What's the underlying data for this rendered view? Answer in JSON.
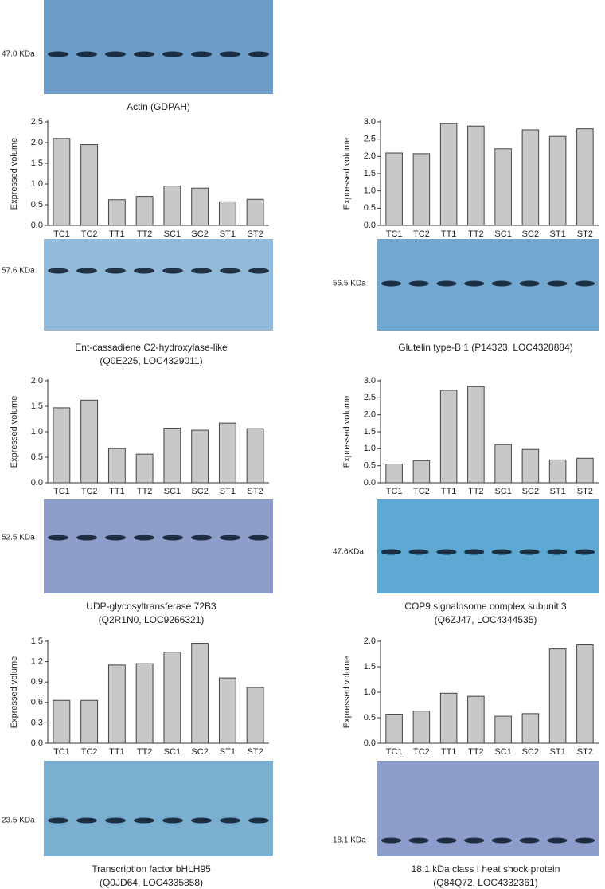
{
  "actin_blot": {
    "label": "47.0 KDa",
    "caption": "Actin (GDPAH)",
    "blot_color": "#6b9dc8"
  },
  "chart_data": [
    {
      "type": "bar",
      "y_label": "Expressed volume",
      "color": "#c8c8c8",
      "categories": [
        "TC1",
        "TC2",
        "TT1",
        "TT2",
        "SC1",
        "SC2",
        "ST1",
        "ST2"
      ],
      "values": [
        2.1,
        1.95,
        0.62,
        0.7,
        0.95,
        0.9,
        0.57,
        0.63
      ],
      "ylim": [
        0,
        2.5
      ],
      "yticks": [
        {
          "value": 0,
          "label": "0.0"
        },
        0.5,
        {
          "value": 1,
          "label": "1.0"
        },
        1.5,
        {
          "value": 2,
          "label": "2.0"
        },
        2.5
      ],
      "blot_label": "57.6 KDa",
      "blot_color": "#92bbdb",
      "caption": [
        "Ent-cassadiene C2-hydroxylase-like",
        "(Q0E225, LOC4329011)"
      ]
    },
    {
      "type": "bar",
      "y_label": "Expressed volume",
      "color": "#c8c8c8",
      "categories": [
        "TC1",
        "TC2",
        "TT1",
        "TT2",
        "SC1",
        "SC2",
        "ST1",
        "ST2"
      ],
      "values": [
        2.1,
        2.08,
        2.95,
        2.88,
        2.22,
        2.77,
        2.58,
        2.8
      ],
      "ylim": [
        0,
        3
      ],
      "yticks": [
        {
          "value": 0,
          "label": "0.0"
        },
        0.5,
        {
          "value": 1,
          "label": "1.0"
        },
        1.5,
        {
          "value": 2,
          "label": "2.0"
        },
        2.5,
        {
          "value": 3,
          "label": "3.0"
        }
      ],
      "blot_label": "56.5 KDa",
      "blot_color": "#72a8d0",
      "caption": [
        "Glutelin type-B 1 (P14323, LOC4328884)"
      ]
    },
    {
      "type": "bar",
      "y_label": "Expressed volume",
      "color": "#c8c8c8",
      "categories": [
        "TC1",
        "TC2",
        "TT1",
        "TT2",
        "SC1",
        "SC2",
        "ST1",
        "ST2"
      ],
      "values": [
        1.47,
        1.62,
        0.67,
        0.56,
        1.07,
        1.03,
        1.17,
        1.06
      ],
      "ylim": [
        0,
        2
      ],
      "yticks": [
        {
          "value": 0,
          "label": "0.0"
        },
        0.5,
        {
          "value": 1,
          "label": "1.0"
        },
        1.5,
        {
          "value": 2,
          "label": "2.0"
        }
      ],
      "blot_label": "52.5 KDa",
      "blot_color": "#8c9dc9",
      "caption": [
        "UDP-glycosyltransferase 72B3",
        "(Q2R1N0, LOC9266321)"
      ]
    },
    {
      "type": "bar",
      "y_label": "Expressed volume",
      "color": "#c8c8c8",
      "categories": [
        "TC1",
        "TC2",
        "TT1",
        "TT2",
        "SC1",
        "SC2",
        "ST1",
        "ST2"
      ],
      "values": [
        0.55,
        0.65,
        2.72,
        2.83,
        1.12,
        0.98,
        0.67,
        0.72
      ],
      "ylim": [
        0,
        3
      ],
      "yticks": [
        {
          "value": 0,
          "label": "0.0"
        },
        0.5,
        {
          "value": 1,
          "label": "1.0"
        },
        1.5,
        {
          "value": 2,
          "label": "2.0"
        },
        2.5,
        {
          "value": 3,
          "label": "3.0"
        }
      ],
      "blot_label": "47.6KDa",
      "blot_color": "#5ea9d3",
      "caption": [
        "COP9 signalosome complex subunit 3",
        "(Q6ZJ47, LOC4344535)"
      ]
    },
    {
      "type": "bar",
      "y_label": "Expressed volume",
      "color": "#c8c8c8",
      "categories": [
        "TC1",
        "TC2",
        "TT1",
        "TT2",
        "SC1",
        "SC2",
        "ST1",
        "ST2"
      ],
      "values": [
        0.63,
        0.63,
        1.15,
        1.17,
        1.34,
        1.47,
        0.96,
        0.82
      ],
      "ylim": [
        0,
        1.5
      ],
      "yticks": [
        {
          "value": 0,
          "label": "0.0"
        },
        0.3,
        0.6,
        0.9,
        1.2,
        1.5
      ],
      "blot_label": "23.5 KDa",
      "blot_color": "#7aafd1",
      "caption": [
        "Transcription factor bHLH95",
        "(Q0JD64, LOC4335858)"
      ]
    },
    {
      "type": "bar",
      "y_label": "Expressed volume",
      "color": "#c8c8c8",
      "categories": [
        "TC1",
        "TC2",
        "TT1",
        "TT2",
        "SC1",
        "SC2",
        "ST1",
        "ST2"
      ],
      "values": [
        0.57,
        0.63,
        0.98,
        0.92,
        0.53,
        0.58,
        1.85,
        1.93
      ],
      "ylim": [
        0,
        2
      ],
      "yticks": [
        {
          "value": 0,
          "label": "0.0"
        },
        0.5,
        {
          "value": 1,
          "label": "1.0"
        },
        1.5,
        {
          "value": 2,
          "label": "2.0"
        }
      ],
      "blot_label": "18.1 KDa",
      "blot_color": "#8d9dcb",
      "caption": [
        "18.1 kDa class I heat shock protein",
        "(Q84Q72, LOC4332361)"
      ]
    }
  ]
}
